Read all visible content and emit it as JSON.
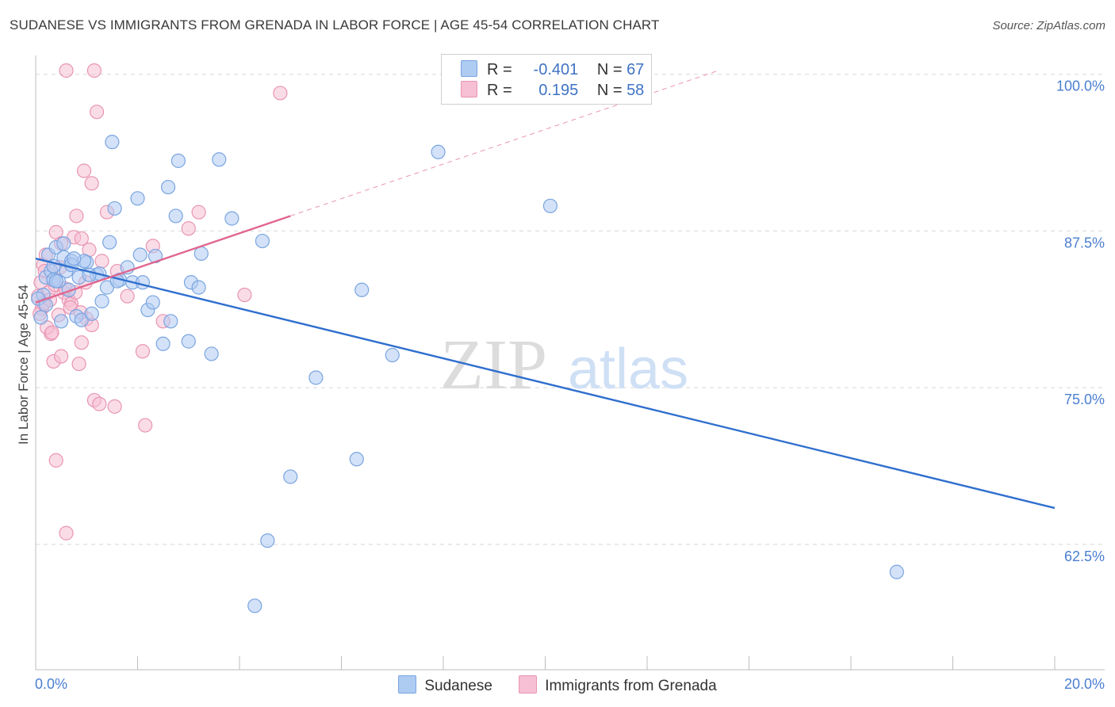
{
  "header": {
    "title": "SUDANESE VS IMMIGRANTS FROM GRENADA IN LABOR FORCE | AGE 45-54 CORRELATION CHART",
    "source": "Source: ZipAtlas.com"
  },
  "watermark": {
    "part1": "ZIP",
    "part2": "atlas"
  },
  "legend": {
    "r_label": "R =",
    "n_label": "N =",
    "series": [
      {
        "r": "-0.401",
        "n": "67"
      },
      {
        "r": "0.195",
        "n": "58"
      }
    ]
  },
  "colors": {
    "blue_fill": "#aecbf2",
    "blue_stroke": "#7aa5e0",
    "blue_line": "#2f6fce",
    "pink_fill": "#f6bfd3",
    "pink_stroke": "#e995b4",
    "pink_line": "#e0668f",
    "grid": "#d8d8d8",
    "tick_text": "#4a7fd0"
  },
  "chart_data": {
    "type": "scatter",
    "title": "SUDANESE VS IMMIGRANTS FROM GRENADA IN LABOR FORCE | AGE 45-54 CORRELATION CHART",
    "xlabel": "",
    "ylabel": "In Labor Force | Age 45-54",
    "xlim": [
      0,
      20
    ],
    "ylim": [
      52.5,
      101.5
    ],
    "x_tick_labels": [
      "0.0%",
      "20.0%"
    ],
    "y_ticks": [
      62.5,
      75.0,
      87.5,
      100.0
    ],
    "y_tick_labels": [
      "62.5%",
      "75.0%",
      "87.5%",
      "100.0%"
    ],
    "grid": true,
    "series": [
      {
        "name": "Sudanese",
        "color": "#aecbf2",
        "points": [
          [
            0.1,
            80.6
          ],
          [
            0.15,
            82.4
          ],
          [
            0.2,
            83.8
          ],
          [
            0.25,
            85.6
          ],
          [
            0.3,
            84.3
          ],
          [
            0.35,
            83.6
          ],
          [
            0.4,
            86.2
          ],
          [
            0.45,
            83.5
          ],
          [
            0.5,
            80.3
          ],
          [
            0.55,
            85.4
          ],
          [
            0.6,
            84.3
          ],
          [
            0.65,
            82.8
          ],
          [
            0.7,
            85.1
          ],
          [
            0.8,
            80.7
          ],
          [
            0.85,
            83.8
          ],
          [
            0.9,
            80.4
          ],
          [
            1.0,
            85.0
          ],
          [
            1.1,
            80.9
          ],
          [
            1.2,
            84.0
          ],
          [
            1.3,
            81.9
          ],
          [
            1.4,
            83.0
          ],
          [
            1.5,
            94.6
          ],
          [
            1.55,
            89.3
          ],
          [
            1.65,
            83.6
          ],
          [
            1.8,
            84.6
          ],
          [
            1.9,
            83.4
          ],
          [
            2.0,
            90.1
          ],
          [
            2.05,
            85.6
          ],
          [
            2.1,
            83.4
          ],
          [
            2.2,
            81.2
          ],
          [
            2.35,
            85.5
          ],
          [
            2.5,
            78.5
          ],
          [
            2.6,
            91.0
          ],
          [
            2.65,
            80.3
          ],
          [
            2.75,
            88.7
          ],
          [
            2.8,
            93.1
          ],
          [
            3.0,
            78.7
          ],
          [
            3.05,
            83.4
          ],
          [
            3.2,
            83.0
          ],
          [
            3.25,
            85.7
          ],
          [
            3.45,
            77.7
          ],
          [
            3.6,
            93.2
          ],
          [
            3.85,
            88.5
          ],
          [
            4.3,
            57.6
          ],
          [
            4.45,
            86.7
          ],
          [
            4.55,
            62.8
          ],
          [
            5.0,
            67.9
          ],
          [
            5.5,
            75.8
          ],
          [
            6.3,
            69.3
          ],
          [
            6.4,
            82.8
          ],
          [
            7.0,
            77.6
          ],
          [
            7.9,
            93.8
          ],
          [
            10.1,
            89.5
          ],
          [
            16.9,
            60.3
          ],
          [
            0.05,
            82.1
          ],
          [
            1.25,
            84.1
          ],
          [
            0.95,
            85.1
          ],
          [
            0.35,
            84.7
          ],
          [
            1.6,
            83.5
          ],
          [
            2.3,
            81.8
          ],
          [
            0.7,
            84.8
          ],
          [
            1.45,
            86.6
          ],
          [
            0.2,
            81.6
          ],
          [
            0.55,
            86.5
          ],
          [
            1.05,
            84.0
          ],
          [
            0.4,
            83.5
          ],
          [
            0.75,
            85.3
          ]
        ]
      },
      {
        "name": "Immigrants from Grenada",
        "color": "#f6bfd3",
        "points": [
          [
            0.05,
            82.3
          ],
          [
            0.1,
            83.4
          ],
          [
            0.12,
            81.3
          ],
          [
            0.15,
            84.8
          ],
          [
            0.2,
            85.6
          ],
          [
            0.25,
            82.6
          ],
          [
            0.3,
            79.3
          ],
          [
            0.35,
            77.1
          ],
          [
            0.4,
            69.2
          ],
          [
            0.4,
            87.4
          ],
          [
            0.45,
            80.8
          ],
          [
            0.5,
            86.5
          ],
          [
            0.5,
            77.5
          ],
          [
            0.55,
            82.6
          ],
          [
            0.6,
            63.4
          ],
          [
            0.65,
            82.0
          ],
          [
            0.7,
            81.7
          ],
          [
            0.75,
            87.0
          ],
          [
            0.8,
            88.7
          ],
          [
            0.85,
            76.9
          ],
          [
            0.9,
            78.6
          ],
          [
            0.9,
            86.9
          ],
          [
            0.95,
            92.3
          ],
          [
            1.0,
            80.5
          ],
          [
            1.05,
            86.0
          ],
          [
            1.1,
            91.3
          ],
          [
            1.1,
            80.0
          ],
          [
            1.15,
            74.0
          ],
          [
            1.2,
            97.0
          ],
          [
            1.25,
            73.7
          ],
          [
            1.55,
            73.5
          ],
          [
            1.6,
            84.3
          ],
          [
            1.8,
            82.3
          ],
          [
            2.1,
            77.9
          ],
          [
            2.15,
            72.0
          ],
          [
            2.3,
            86.3
          ],
          [
            2.5,
            80.3
          ],
          [
            3.0,
            87.7
          ],
          [
            3.2,
            89.0
          ],
          [
            4.1,
            82.4
          ],
          [
            4.8,
            98.5
          ],
          [
            0.6,
            100.3
          ],
          [
            1.15,
            100.3
          ],
          [
            0.08,
            80.9
          ],
          [
            0.18,
            84.3
          ],
          [
            0.28,
            82.0
          ],
          [
            0.38,
            83.2
          ],
          [
            0.48,
            84.6
          ],
          [
            0.58,
            82.9
          ],
          [
            0.68,
            81.4
          ],
          [
            0.78,
            82.6
          ],
          [
            0.88,
            81.0
          ],
          [
            0.98,
            83.4
          ],
          [
            1.4,
            89.0
          ],
          [
            0.22,
            79.8
          ],
          [
            0.32,
            79.4
          ],
          [
            1.3,
            85.1
          ],
          [
            0.15,
            81.7
          ]
        ]
      }
    ],
    "trendlines": [
      {
        "series": "Sudanese",
        "x": [
          0,
          20
        ],
        "y": [
          85.3,
          65.4
        ],
        "style": "solid"
      },
      {
        "series": "Immigrants from Grenada",
        "x": [
          0,
          5.0
        ],
        "y": [
          81.8,
          88.7
        ],
        "style": "solid"
      },
      {
        "series": "Immigrants from Grenada",
        "x": [
          5.0,
          13.4
        ],
        "y": [
          88.7,
          100.3
        ],
        "style": "dashed"
      }
    ]
  }
}
